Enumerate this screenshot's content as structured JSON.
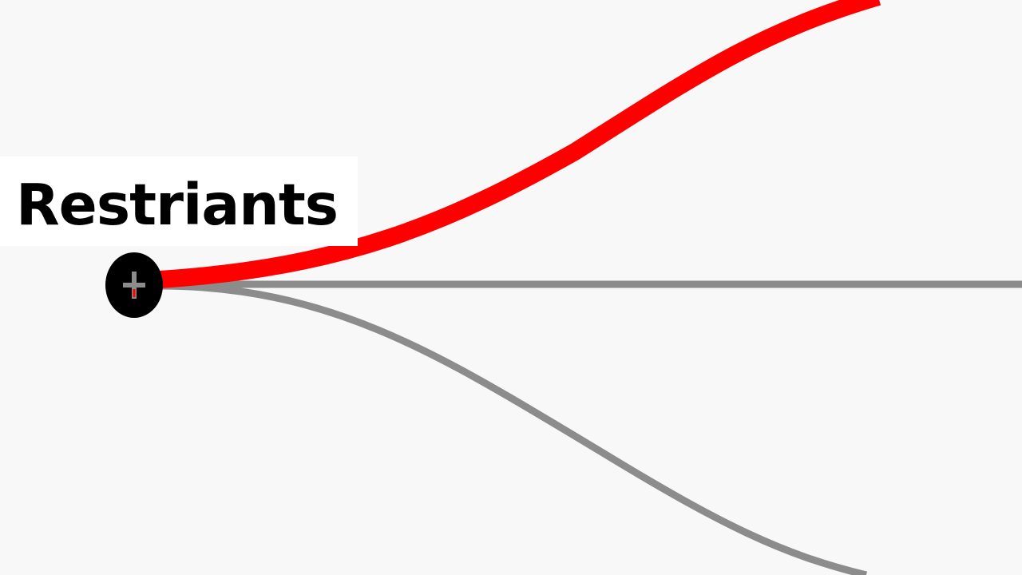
{
  "node": {
    "label": "Restriants",
    "expand_icon": "plus-icon"
  },
  "colors": {
    "background": "#f8f8f9",
    "highlighted_link": "#ff0000",
    "link": "#8c8c8c",
    "node_circle": "#000000"
  },
  "links": [
    {
      "name": "link-upper",
      "highlighted": true
    },
    {
      "name": "link-middle",
      "highlighted": false
    },
    {
      "name": "link-lower",
      "highlighted": false
    }
  ]
}
